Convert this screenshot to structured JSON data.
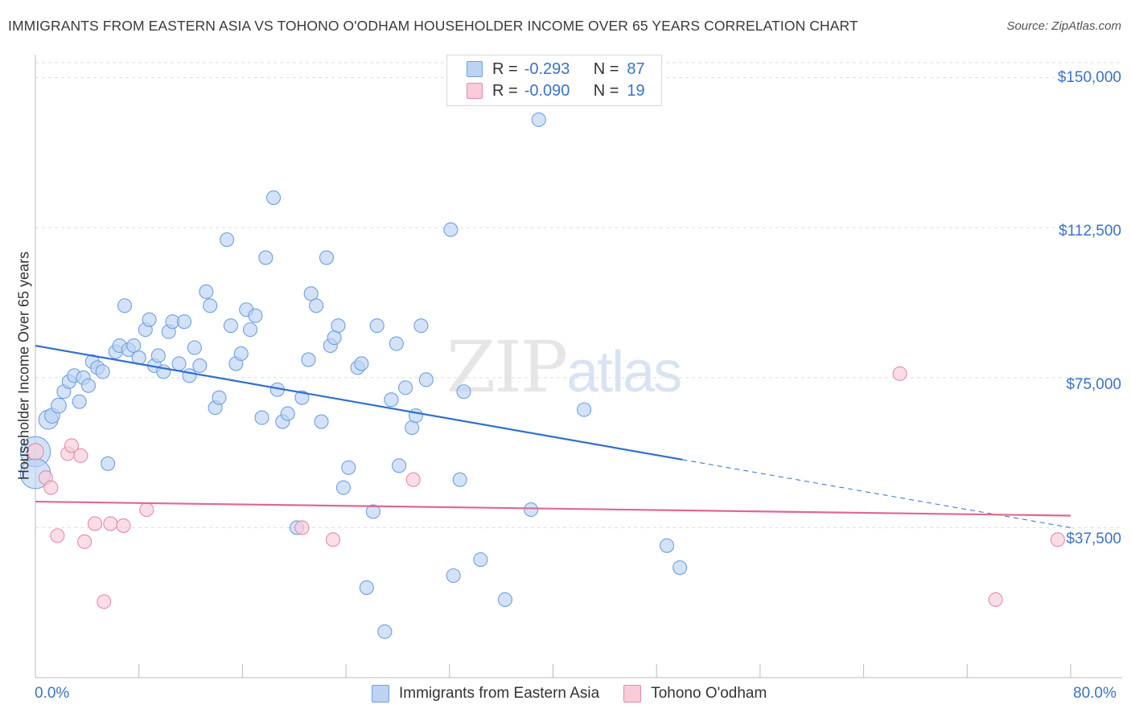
{
  "title": "IMMIGRANTS FROM EASTERN ASIA VS TOHONO O'ODHAM HOUSEHOLDER INCOME OVER 65 YEARS CORRELATION CHART",
  "source": "Source: ZipAtlas.com",
  "watermark": {
    "zip": "ZIP",
    "atlas": "atlas"
  },
  "legend": {
    "rows": [
      {
        "r_label": "R =",
        "r_value": "-0.293",
        "n_label": "N =",
        "n_value": "87",
        "color": "#6fa0e0",
        "fill": "#bcd3f2"
      },
      {
        "r_label": "R =",
        "r_value": "-0.090",
        "n_label": "N =",
        "n_value": "19",
        "color": "#e88aa8",
        "fill": "#f8ccd9"
      }
    ]
  },
  "axes": {
    "ylabel": "Householder Income Over 65 years",
    "x_min_label": "0.0%",
    "x_max_label": "80.0%",
    "y_ticks": [
      "$150,000",
      "$112,500",
      "$75,000",
      "$37,500"
    ]
  },
  "bottom_legend": [
    "Immigrants from Eastern Asia",
    "Tohono O'odham"
  ],
  "colors": {
    "blue_stroke": "#6fa0e0",
    "blue_fill": "#bcd3f2",
    "pink_stroke": "#e88aa8",
    "pink_fill": "#f8ccd9",
    "blue_line": "#2f6fcf",
    "pink_line": "#e0688f",
    "tick_text": "#3a72c9",
    "grid": "#dddddd"
  },
  "chart_data": {
    "type": "scatter",
    "xlim": [
      0,
      80
    ],
    "ylim": [
      0,
      153750
    ],
    "x_unit": "%",
    "y_unit": "$",
    "grid": true,
    "legend_position": "top-center",
    "series": [
      {
        "name": "Immigrants from Eastern Asia",
        "trend": {
          "x": [
            0,
            50
          ],
          "y": [
            83000,
            54500
          ],
          "dashed_to": [
            80,
            37500
          ]
        },
        "points": [
          [
            0.0,
            56500,
            2.2
          ],
          [
            0.0,
            51000,
            2.2
          ],
          [
            1.0,
            64500,
            1.4
          ],
          [
            1.3,
            65500,
            1.1
          ],
          [
            1.8,
            68000,
            1.1
          ],
          [
            2.2,
            71500,
            1.0
          ],
          [
            2.6,
            74000,
            1.0
          ],
          [
            3.0,
            75500,
            1.0
          ],
          [
            3.4,
            69000,
            1.0
          ],
          [
            3.7,
            75000,
            1.0
          ],
          [
            4.1,
            73000,
            1.0
          ],
          [
            4.4,
            79000,
            1.0
          ],
          [
            4.8,
            77500,
            1.0
          ],
          [
            5.2,
            76500,
            1.0
          ],
          [
            5.6,
            53500,
            1.0
          ],
          [
            6.2,
            81500,
            1.0
          ],
          [
            6.5,
            83000,
            1.0
          ],
          [
            6.9,
            93000,
            1.0
          ],
          [
            7.2,
            82000,
            1.0
          ],
          [
            7.6,
            83000,
            1.0
          ],
          [
            8.0,
            80000,
            1.0
          ],
          [
            8.5,
            87000,
            1.0
          ],
          [
            8.8,
            89500,
            1.0
          ],
          [
            9.2,
            78000,
            1.0
          ],
          [
            9.5,
            80500,
            1.0
          ],
          [
            9.9,
            76500,
            1.0
          ],
          [
            10.3,
            86500,
            1.0
          ],
          [
            10.6,
            89000,
            1.0
          ],
          [
            11.1,
            78500,
            1.0
          ],
          [
            11.5,
            89000,
            1.0
          ],
          [
            11.9,
            75500,
            1.0
          ],
          [
            12.3,
            82500,
            1.0
          ],
          [
            12.7,
            78000,
            1.0
          ],
          [
            13.2,
            96500,
            1.0
          ],
          [
            13.5,
            93000,
            1.0
          ],
          [
            13.9,
            67500,
            1.0
          ],
          [
            14.2,
            70000,
            1.0
          ],
          [
            14.8,
            109500,
            1.0
          ],
          [
            15.1,
            88000,
            1.0
          ],
          [
            15.5,
            78500,
            1.0
          ],
          [
            15.9,
            81000,
            1.0
          ],
          [
            16.3,
            92000,
            1.0
          ],
          [
            16.6,
            87000,
            1.0
          ],
          [
            17.0,
            90500,
            1.0
          ],
          [
            17.5,
            65000,
            1.0
          ],
          [
            17.8,
            105000,
            1.0
          ],
          [
            18.4,
            120000,
            1.0
          ],
          [
            18.7,
            72000,
            1.0
          ],
          [
            19.1,
            64000,
            1.0
          ],
          [
            19.5,
            66000,
            1.0
          ],
          [
            20.2,
            37500,
            1.0
          ],
          [
            20.6,
            70000,
            1.0
          ],
          [
            21.1,
            79500,
            1.0
          ],
          [
            21.3,
            96000,
            1.0
          ],
          [
            21.7,
            93000,
            1.0
          ],
          [
            22.1,
            64000,
            1.0
          ],
          [
            22.5,
            105000,
            1.0
          ],
          [
            22.8,
            83000,
            1.0
          ],
          [
            23.1,
            85000,
            1.0
          ],
          [
            23.4,
            88000,
            1.0
          ],
          [
            23.8,
            47500,
            1.0
          ],
          [
            24.2,
            52500,
            1.0
          ],
          [
            24.9,
            77500,
            1.0
          ],
          [
            25.2,
            78500,
            1.0
          ],
          [
            25.6,
            22500,
            1.0
          ],
          [
            26.1,
            41500,
            1.0
          ],
          [
            26.4,
            88000,
            1.0
          ],
          [
            27.0,
            11500,
            1.0
          ],
          [
            27.5,
            69500,
            1.0
          ],
          [
            27.9,
            83500,
            1.0
          ],
          [
            28.1,
            53000,
            1.0
          ],
          [
            28.6,
            72500,
            1.0
          ],
          [
            29.1,
            62500,
            1.0
          ],
          [
            29.4,
            65500,
            1.0
          ],
          [
            29.8,
            88000,
            1.0
          ],
          [
            30.2,
            74500,
            1.0
          ],
          [
            32.1,
            112000,
            1.0
          ],
          [
            32.3,
            25500,
            1.0
          ],
          [
            32.8,
            49500,
            1.0
          ],
          [
            33.1,
            71500,
            1.0
          ],
          [
            34.4,
            29500,
            1.0
          ],
          [
            36.3,
            19500,
            1.0
          ],
          [
            38.3,
            42000,
            1.0
          ],
          [
            38.9,
            139500,
            1.0
          ],
          [
            42.4,
            67000,
            1.0
          ],
          [
            48.8,
            33000,
            1.0
          ],
          [
            49.8,
            27500,
            1.0
          ]
        ]
      },
      {
        "name": "Tohono O'odham",
        "trend": {
          "x": [
            0,
            80
          ],
          "y": [
            44000,
            40500
          ]
        },
        "points": [
          [
            0.0,
            56500,
            1.2
          ],
          [
            0.8,
            50000,
            1.0
          ],
          [
            1.2,
            47500,
            1.0
          ],
          [
            1.7,
            35500,
            1.0
          ],
          [
            2.5,
            56000,
            1.0
          ],
          [
            2.8,
            58000,
            1.0
          ],
          [
            3.5,
            55500,
            1.0
          ],
          [
            3.8,
            34000,
            1.0
          ],
          [
            4.6,
            38500,
            1.0
          ],
          [
            5.3,
            19000,
            1.0
          ],
          [
            5.8,
            38500,
            1.0
          ],
          [
            6.8,
            38000,
            1.0
          ],
          [
            8.6,
            42000,
            1.0
          ],
          [
            20.6,
            37500,
            1.0
          ],
          [
            23.0,
            34500,
            1.0
          ],
          [
            29.2,
            49500,
            1.0
          ],
          [
            66.8,
            76000,
            1.0
          ],
          [
            74.2,
            19500,
            1.0
          ],
          [
            79.0,
            34500,
            1.0
          ]
        ]
      }
    ]
  }
}
